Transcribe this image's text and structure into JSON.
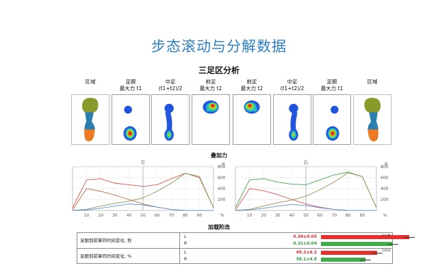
{
  "main_title": "步态滚动与分解数据",
  "section_foot": "三足区分析",
  "section_force": "叠加力",
  "section_accel": "加载阶改",
  "columns": [
    {
      "line1": "区域",
      "line2": ""
    },
    {
      "line1": "足跟",
      "line2": "最大力 t1"
    },
    {
      "line1": "中足",
      "line2": "(t1+t2)/2"
    },
    {
      "line1": "前足",
      "line2": "最大力 t2"
    },
    {
      "line1": "前足",
      "line2": "最大力 t2"
    },
    {
      "line1": "中足",
      "line2": "(t1+t2)/2"
    },
    {
      "line1": "足跟",
      "line2": "最大力 t1"
    },
    {
      "line1": "区域",
      "line2": ""
    }
  ],
  "charts": {
    "left_title": "左",
    "right_title": "右",
    "y_unit": "N",
    "x_unit": "%",
    "x_ticks": [
      "10",
      "20",
      "30",
      "40",
      "50",
      "60",
      "70",
      "80",
      "90"
    ],
    "y_ticks": [
      "800",
      "600",
      "400",
      "200"
    ]
  },
  "chart_data": [
    {
      "type": "line",
      "title": "左",
      "x": [
        0,
        10,
        20,
        30,
        40,
        50,
        60,
        70,
        80,
        90,
        100
      ],
      "ylabel": "N",
      "xlabel": "%",
      "ylim": [
        0,
        800
      ],
      "xlim": [
        0,
        100
      ],
      "series": [
        {
          "name": "",
          "color": "#d9534f",
          "values": [
            50,
            560,
            580,
            500,
            470,
            440,
            470,
            580,
            680,
            600,
            50
          ]
        },
        {
          "name": "",
          "color": "#7a9a4a",
          "values": [
            0,
            20,
            80,
            130,
            170,
            230,
            350,
            500,
            680,
            620,
            50
          ]
        },
        {
          "name": "",
          "color": "#c0694a",
          "values": [
            10,
            400,
            350,
            280,
            200,
            120,
            60,
            20,
            0,
            0,
            0
          ]
        },
        {
          "name": "",
          "color": "#5b8fd6",
          "values": [
            0,
            10,
            40,
            80,
            120,
            100,
            60,
            20,
            0,
            0,
            0
          ]
        }
      ]
    },
    {
      "type": "line",
      "title": "右",
      "x": [
        0,
        10,
        20,
        30,
        40,
        50,
        60,
        70,
        80,
        90,
        100
      ],
      "ylabel": "N",
      "xlabel": "%",
      "ylim": [
        0,
        800
      ],
      "xlim": [
        0,
        100
      ],
      "series": [
        {
          "name": "",
          "color": "#3fa34d",
          "values": [
            50,
            560,
            580,
            520,
            480,
            470,
            560,
            650,
            700,
            620,
            50
          ]
        },
        {
          "name": "",
          "color": "#d9534f",
          "values": [
            10,
            400,
            360,
            290,
            200,
            120,
            60,
            20,
            0,
            0,
            0
          ]
        },
        {
          "name": "",
          "color": "#9c8a4a",
          "values": [
            0,
            20,
            80,
            140,
            190,
            260,
            380,
            520,
            690,
            620,
            50
          ]
        },
        {
          "name": "",
          "color": "#5b8fd6",
          "values": [
            0,
            10,
            40,
            80,
            110,
            90,
            50,
            20,
            0,
            0,
            0
          ]
        }
      ]
    }
  ],
  "table": {
    "rows": [
      {
        "desc": "足跟到前掌的时间变化, 秒",
        "scale": "0.5 秒",
        "L": {
          "label": "L",
          "value": "0.38±0.05",
          "fraction": 0.76,
          "color": "red"
        },
        "R": {
          "label": "R",
          "value": "0.31±0.04",
          "fraction": 0.62,
          "color": "green"
        }
      },
      {
        "desc": "足跟到前掌的时间变化, %",
        "scale": "100%",
        "L": {
          "label": "L",
          "value": "48.2±6.2",
          "fraction": 0.48,
          "color": "red"
        },
        "R": {
          "label": "R",
          "value": "38.1±4.8",
          "fraction": 0.38,
          "color": "green"
        }
      }
    ]
  }
}
